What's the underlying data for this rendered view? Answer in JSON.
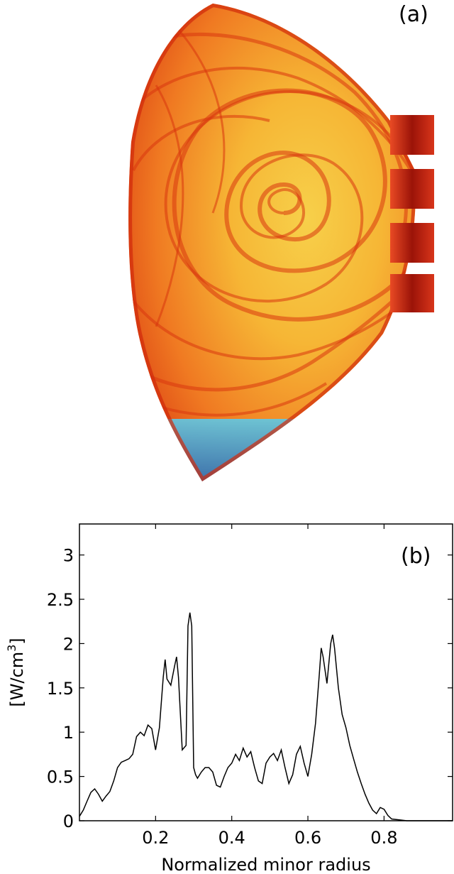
{
  "panel_a": {
    "label": "(a)"
  },
  "chart_data": {
    "type": "line",
    "panel_label": "(b)",
    "xlabel": "Normalized minor radius",
    "ylabel": "[W/cm",
    "ylabel_sup": "3",
    "ylabel_end": "]",
    "xlim": [
      0,
      0.98
    ],
    "ylim": [
      0,
      3.35
    ],
    "xticks": [
      0.2,
      0.4,
      0.6,
      0.8
    ],
    "xtick_labels": [
      "0.2",
      "0.4",
      "0.6",
      "0.8"
    ],
    "yticks": [
      0,
      0.5,
      1,
      1.5,
      2,
      2.5,
      3
    ],
    "ytick_labels": [
      "0",
      "0.5",
      "1",
      "1.5",
      "2",
      "2.5",
      "3"
    ],
    "grid": false,
    "line_color": "#000000",
    "x": [
      0.0,
      0.01,
      0.02,
      0.03,
      0.04,
      0.05,
      0.06,
      0.07,
      0.08,
      0.09,
      0.1,
      0.11,
      0.12,
      0.13,
      0.14,
      0.15,
      0.16,
      0.17,
      0.18,
      0.19,
      0.2,
      0.21,
      0.22,
      0.225,
      0.23,
      0.24,
      0.25,
      0.255,
      0.26,
      0.27,
      0.28,
      0.285,
      0.29,
      0.295,
      0.3,
      0.305,
      0.31,
      0.32,
      0.33,
      0.34,
      0.35,
      0.36,
      0.37,
      0.38,
      0.39,
      0.4,
      0.41,
      0.42,
      0.43,
      0.44,
      0.45,
      0.46,
      0.47,
      0.48,
      0.49,
      0.5,
      0.51,
      0.52,
      0.53,
      0.54,
      0.55,
      0.56,
      0.57,
      0.58,
      0.59,
      0.6,
      0.61,
      0.62,
      0.63,
      0.635,
      0.64,
      0.65,
      0.66,
      0.665,
      0.67,
      0.68,
      0.69,
      0.7,
      0.71,
      0.72,
      0.73,
      0.74,
      0.75,
      0.76,
      0.77,
      0.78,
      0.79,
      0.8,
      0.81,
      0.82,
      0.84,
      0.86,
      0.9,
      0.95,
      0.98
    ],
    "y": [
      0.05,
      0.12,
      0.22,
      0.32,
      0.36,
      0.3,
      0.22,
      0.28,
      0.33,
      0.45,
      0.6,
      0.66,
      0.68,
      0.7,
      0.75,
      0.95,
      1.0,
      0.96,
      1.08,
      1.04,
      0.8,
      1.05,
      1.62,
      1.82,
      1.6,
      1.53,
      1.75,
      1.85,
      1.62,
      0.8,
      0.85,
      2.2,
      2.35,
      2.2,
      0.6,
      0.52,
      0.48,
      0.55,
      0.6,
      0.6,
      0.55,
      0.4,
      0.38,
      0.5,
      0.6,
      0.65,
      0.75,
      0.68,
      0.82,
      0.72,
      0.78,
      0.6,
      0.45,
      0.42,
      0.65,
      0.72,
      0.76,
      0.68,
      0.8,
      0.6,
      0.42,
      0.52,
      0.75,
      0.84,
      0.65,
      0.5,
      0.75,
      1.1,
      1.65,
      1.95,
      1.85,
      1.55,
      2.0,
      2.1,
      1.95,
      1.5,
      1.2,
      1.05,
      0.85,
      0.7,
      0.55,
      0.42,
      0.3,
      0.2,
      0.12,
      0.08,
      0.15,
      0.13,
      0.06,
      0.02,
      0.01,
      0.0,
      0.0,
      0.0,
      0.0
    ]
  }
}
